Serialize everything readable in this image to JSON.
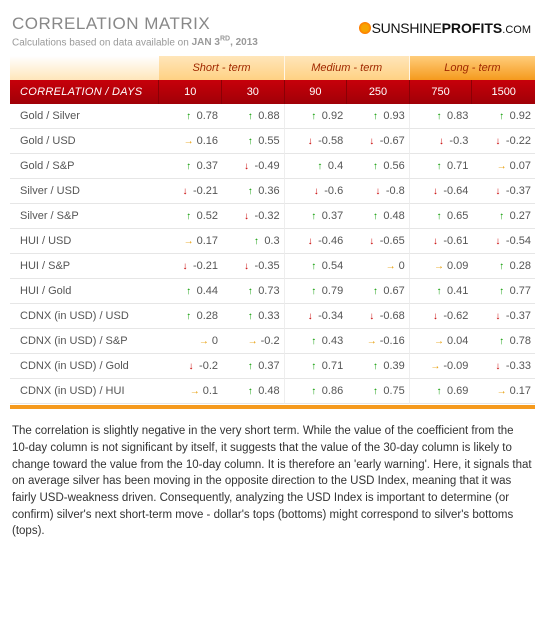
{
  "title": "CORRELATION MATRIX",
  "subtitle_prefix": "Calculations based on data available on",
  "date_main": "JAN 3",
  "date_sup": "RD",
  "date_year": ", 2013",
  "logo": {
    "part1": "SUNSHINE",
    "part2": "PROFITS",
    "suffix": ".COM"
  },
  "terms": {
    "short": "Short - term",
    "medium": "Medium - term",
    "long": "Long - term"
  },
  "head_label": "CORRELATION / DAYS",
  "days": [
    "10",
    "30",
    "90",
    "250",
    "750",
    "1500"
  ],
  "pairs": [
    "Gold / Silver",
    "Gold / USD",
    "Gold / S&P",
    "Silver / USD",
    "Silver / S&P",
    "HUI / USD",
    "HUI / S&P",
    "HUI / Gold",
    "CDNX (in USD) / USD",
    "CDNX (in USD) / S&P",
    "CDNX (in USD) / Gold",
    "CDNX (in USD) / HUI"
  ],
  "values": [
    [
      {
        "v": "0.78",
        "d": "up"
      },
      {
        "v": "0.88",
        "d": "up"
      },
      {
        "v": "0.92",
        "d": "up"
      },
      {
        "v": "0.93",
        "d": "up"
      },
      {
        "v": "0.83",
        "d": "up"
      },
      {
        "v": "0.92",
        "d": "up"
      }
    ],
    [
      {
        "v": "0.16",
        "d": "flat"
      },
      {
        "v": "0.55",
        "d": "up"
      },
      {
        "v": "-0.58",
        "d": "down"
      },
      {
        "v": "-0.67",
        "d": "down"
      },
      {
        "v": "-0.3",
        "d": "down"
      },
      {
        "v": "-0.22",
        "d": "down"
      }
    ],
    [
      {
        "v": "0.37",
        "d": "up"
      },
      {
        "v": "-0.49",
        "d": "down"
      },
      {
        "v": "0.4",
        "d": "up"
      },
      {
        "v": "0.56",
        "d": "up"
      },
      {
        "v": "0.71",
        "d": "up"
      },
      {
        "v": "0.07",
        "d": "flat"
      }
    ],
    [
      {
        "v": "-0.21",
        "d": "down"
      },
      {
        "v": "0.36",
        "d": "up"
      },
      {
        "v": "-0.6",
        "d": "down"
      },
      {
        "v": "-0.8",
        "d": "down"
      },
      {
        "v": "-0.64",
        "d": "down"
      },
      {
        "v": "-0.37",
        "d": "down"
      }
    ],
    [
      {
        "v": "0.52",
        "d": "up"
      },
      {
        "v": "-0.32",
        "d": "down"
      },
      {
        "v": "0.37",
        "d": "up"
      },
      {
        "v": "0.48",
        "d": "up"
      },
      {
        "v": "0.65",
        "d": "up"
      },
      {
        "v": "0.27",
        "d": "up"
      }
    ],
    [
      {
        "v": "0.17",
        "d": "flat"
      },
      {
        "v": "0.3",
        "d": "up"
      },
      {
        "v": "-0.46",
        "d": "down"
      },
      {
        "v": "-0.65",
        "d": "down"
      },
      {
        "v": "-0.61",
        "d": "down"
      },
      {
        "v": "-0.54",
        "d": "down"
      }
    ],
    [
      {
        "v": "-0.21",
        "d": "down"
      },
      {
        "v": "-0.35",
        "d": "down"
      },
      {
        "v": "0.54",
        "d": "up"
      },
      {
        "v": "0",
        "d": "flat"
      },
      {
        "v": "0.09",
        "d": "flat"
      },
      {
        "v": "0.28",
        "d": "up"
      }
    ],
    [
      {
        "v": "0.44",
        "d": "up"
      },
      {
        "v": "0.73",
        "d": "up"
      },
      {
        "v": "0.79",
        "d": "up"
      },
      {
        "v": "0.67",
        "d": "up"
      },
      {
        "v": "0.41",
        "d": "up"
      },
      {
        "v": "0.77",
        "d": "up"
      }
    ],
    [
      {
        "v": "0.28",
        "d": "up"
      },
      {
        "v": "0.33",
        "d": "up"
      },
      {
        "v": "-0.34",
        "d": "down"
      },
      {
        "v": "-0.68",
        "d": "down"
      },
      {
        "v": "-0.62",
        "d": "down"
      },
      {
        "v": "-0.37",
        "d": "down"
      }
    ],
    [
      {
        "v": "0",
        "d": "flat"
      },
      {
        "v": "-0.2",
        "d": "flat"
      },
      {
        "v": "0.43",
        "d": "up"
      },
      {
        "v": "-0.16",
        "d": "flat"
      },
      {
        "v": "0.04",
        "d": "flat"
      },
      {
        "v": "0.78",
        "d": "up"
      }
    ],
    [
      {
        "v": "-0.2",
        "d": "down"
      },
      {
        "v": "0.37",
        "d": "up"
      },
      {
        "v": "0.71",
        "d": "up"
      },
      {
        "v": "0.39",
        "d": "up"
      },
      {
        "v": "-0.09",
        "d": "flat"
      },
      {
        "v": "-0.33",
        "d": "down"
      }
    ],
    [
      {
        "v": "0.1",
        "d": "flat"
      },
      {
        "v": "0.48",
        "d": "up"
      },
      {
        "v": "0.86",
        "d": "up"
      },
      {
        "v": "0.75",
        "d": "up"
      },
      {
        "v": "0.69",
        "d": "up"
      },
      {
        "v": "0.17",
        "d": "flat"
      }
    ]
  ],
  "arrow_glyphs": {
    "up": "↑",
    "down": "↓",
    "flat": "→"
  },
  "caption": "The correlation is slightly negative in the very short term. While the value of the coefficient from the 10-day column is not significant by itself, it suggests that the value of the 30-day column is likely to change toward the value from the 10-day column. It is therefore an 'early warning'. Here, it signals that on average silver has been moving in the opposite direction to the USD Index, meaning that it was fairly USD-weakness driven. Consequently, analyzing the USD Index is important to determine (or confirm) silver's next short-term move - dollar's tops (bottoms) might correspond to silver's bottoms (tops)."
}
